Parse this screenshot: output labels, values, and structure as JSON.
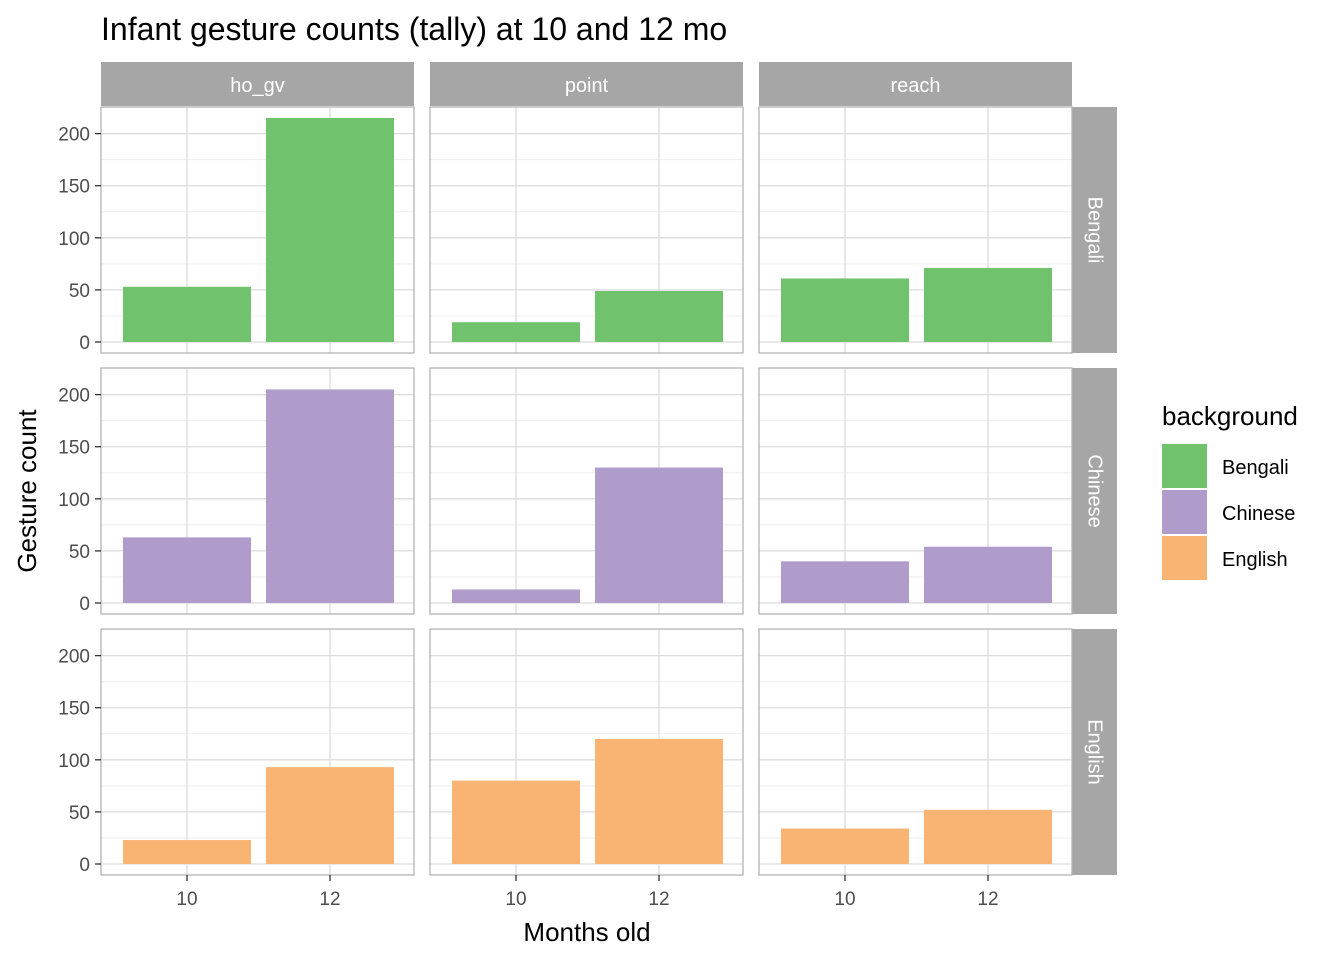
{
  "chart_data": {
    "type": "bar",
    "title": "Infant gesture counts (tally) at 10 and 12 mo",
    "xlabel": "Months old",
    "ylabel": "Gesture count",
    "categories": [
      "10",
      "12"
    ],
    "ylim": [
      0,
      225
    ],
    "yticks": [
      0,
      50,
      100,
      150,
      200
    ],
    "grid": true,
    "facet_columns": [
      "ho_gv",
      "point",
      "reach"
    ],
    "facet_rows": [
      "Bengali",
      "Chinese",
      "English"
    ],
    "legend": {
      "title": "background",
      "position": "right",
      "entries": [
        "Bengali",
        "Chinese",
        "English"
      ]
    },
    "colors": {
      "Bengali": "#70c26c",
      "Chinese": "#af9ccb",
      "English": "#f9b373",
      "strip": "#a6a6a6",
      "strip_text": "#ffffff",
      "grid_major": "#dcdcdc",
      "grid_minor": "#eeeeee",
      "panel_border": "#b3b3b3"
    },
    "values": {
      "Bengali": {
        "ho_gv": [
          53,
          215
        ],
        "point": [
          19,
          49
        ],
        "reach": [
          61,
          71
        ]
      },
      "Chinese": {
        "ho_gv": [
          63,
          205
        ],
        "point": [
          13,
          130
        ],
        "reach": [
          40,
          54
        ]
      },
      "English": {
        "ho_gv": [
          23,
          93
        ],
        "point": [
          80,
          120
        ],
        "reach": [
          34,
          52
        ]
      }
    }
  }
}
